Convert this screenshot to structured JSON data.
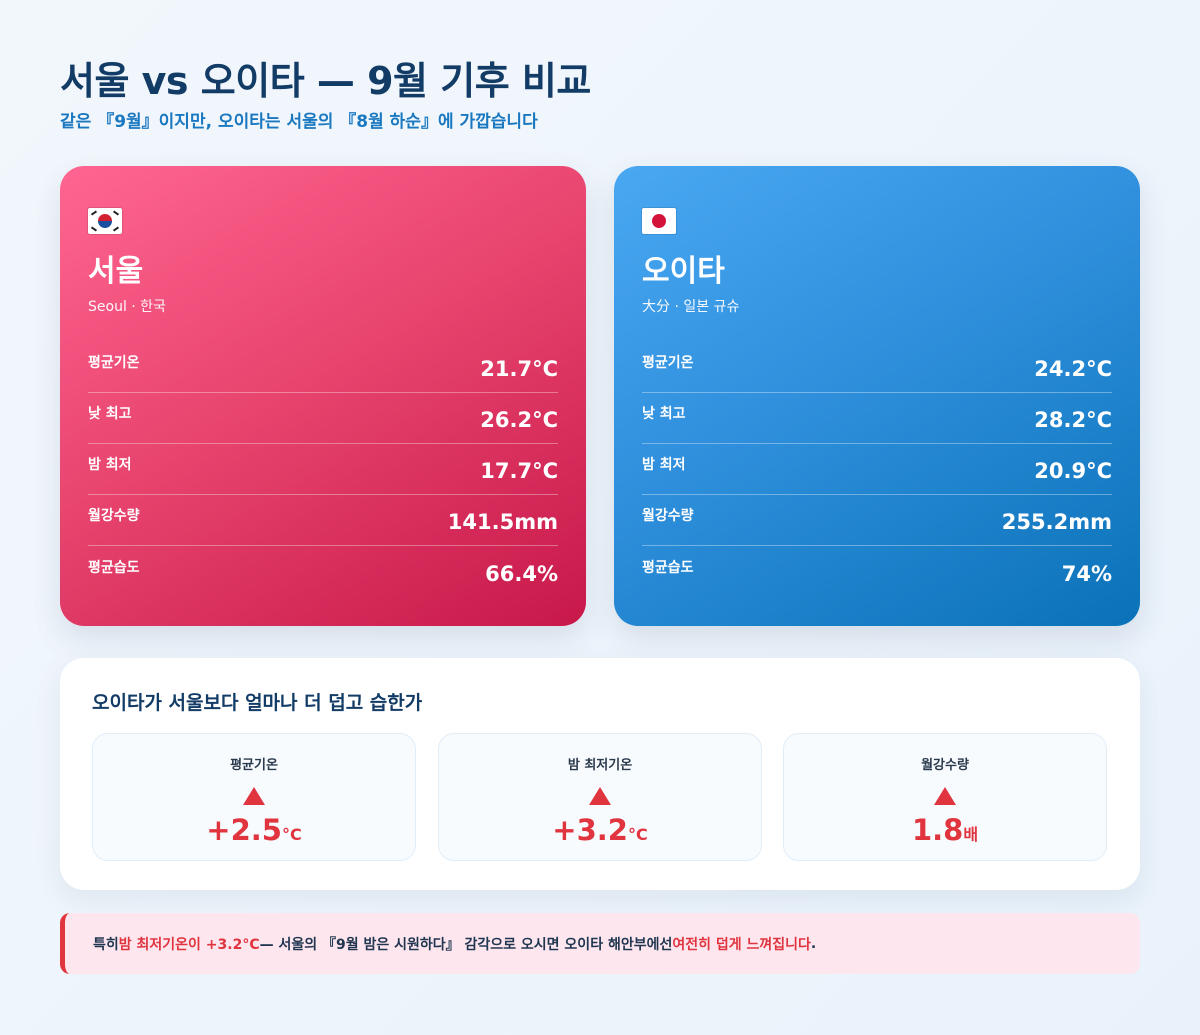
{
  "header": {
    "title": "서울 vs 오이타 — 9월 기후 비교",
    "subtitle": "같은 『9월』이지만, 오이타는 서울의 『8월 하순』에 가깝습니다"
  },
  "cities": [
    {
      "flag": "south-korea-flag-icon",
      "name": "서울",
      "sub": "Seoul · 한국",
      "rows": [
        {
          "label": "평균기온",
          "value": "21.7°C"
        },
        {
          "label": "낮 최고",
          "value": "26.2°C"
        },
        {
          "label": "밤 최저",
          "value": "17.7°C"
        },
        {
          "label": "월강수량",
          "value": "141.5mm"
        },
        {
          "label": "평균습도",
          "value": "66.4%"
        }
      ],
      "color": "#e8456f"
    },
    {
      "flag": "japan-flag-icon",
      "name": "오이타",
      "sub": "大分 · 일본 규슈",
      "rows": [
        {
          "label": "평균기온",
          "value": "24.2°C"
        },
        {
          "label": "낮 최고",
          "value": "28.2°C"
        },
        {
          "label": "밤 최저",
          "value": "20.9°C"
        },
        {
          "label": "월강수량",
          "value": "255.2mm"
        },
        {
          "label": "평균습도",
          "value": "74%"
        }
      ],
      "color": "#2f8fdc"
    }
  ],
  "compare": {
    "title": "오이타가 서울보다 얼마나 더 덥고 습한가",
    "items": [
      {
        "label": "평균기온",
        "value": "+2.5",
        "unit": "°C",
        "icon": "up-triangle-icon"
      },
      {
        "label": "밤 최저기온",
        "value": "+3.2",
        "unit": "°C",
        "icon": "up-triangle-icon"
      },
      {
        "label": "월강수량",
        "value": "1.8",
        "unit": "배",
        "icon": "up-triangle-icon"
      }
    ],
    "accent": "#e0343f"
  },
  "note": {
    "p1": "특히 ",
    "hl1": "밤 최저기온이 +3.2°C",
    "p2": " — 서울의 『9월 밤은 시원하다』 감각으로 오시면 오이타 해안부에선 ",
    "hl2": "여전히 덥게 느껴집니다",
    "p3": "."
  }
}
